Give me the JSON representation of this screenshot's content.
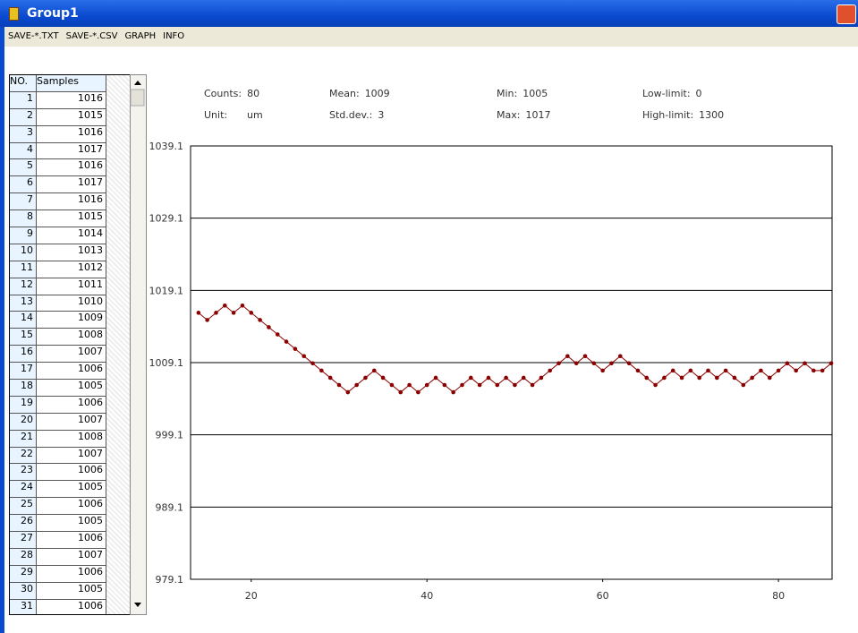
{
  "window": {
    "title": "Group1"
  },
  "menu": [
    "SAVE-*.TXT",
    "SAVE-*.CSV",
    "GRAPH",
    "INFO"
  ],
  "table": {
    "header": [
      "NO.",
      "Samples"
    ],
    "rows": [
      [
        1,
        1016
      ],
      [
        2,
        1015
      ],
      [
        3,
        1016
      ],
      [
        4,
        1017
      ],
      [
        5,
        1016
      ],
      [
        6,
        1017
      ],
      [
        7,
        1016
      ],
      [
        8,
        1015
      ],
      [
        9,
        1014
      ],
      [
        10,
        1013
      ],
      [
        11,
        1012
      ],
      [
        12,
        1011
      ],
      [
        13,
        1010
      ],
      [
        14,
        1009
      ],
      [
        15,
        1008
      ],
      [
        16,
        1007
      ],
      [
        17,
        1006
      ],
      [
        18,
        1005
      ],
      [
        19,
        1006
      ],
      [
        20,
        1007
      ],
      [
        21,
        1008
      ],
      [
        22,
        1007
      ],
      [
        23,
        1006
      ],
      [
        24,
        1005
      ],
      [
        25,
        1006
      ],
      [
        26,
        1005
      ],
      [
        27,
        1006
      ],
      [
        28,
        1007
      ],
      [
        29,
        1006
      ],
      [
        30,
        1005
      ],
      [
        31,
        1006
      ]
    ]
  },
  "stats": [
    {
      "label": "Counts:",
      "value": "80"
    },
    {
      "label": "Unit:",
      "value": "um"
    },
    {
      "label": "Mean:",
      "value": "1009"
    },
    {
      "label": "Std.dev.:",
      "value": "3"
    },
    {
      "label": "Min:",
      "value": "1005"
    },
    {
      "label": "Max:",
      "value": "1017"
    },
    {
      "label": "Low-limit:",
      "value": "0"
    },
    {
      "label": "High-limit:",
      "value": "1300"
    }
  ],
  "chart_data": {
    "type": "line",
    "color": "#8b0000",
    "grid": true,
    "x": [
      14,
      15,
      16,
      17,
      18,
      19,
      20,
      21,
      22,
      23,
      24,
      25,
      26,
      27,
      28,
      29,
      30,
      31,
      32,
      33,
      34,
      35,
      36,
      37,
      38,
      39,
      40,
      41,
      42,
      43,
      44,
      45,
      46,
      47,
      48,
      49,
      50,
      51,
      52,
      53,
      54,
      55,
      56,
      57,
      58,
      59,
      60,
      61,
      62,
      63,
      64,
      65,
      66,
      67,
      68,
      69,
      70,
      71,
      72,
      73,
      74,
      75,
      76,
      77,
      78,
      79,
      80,
      81,
      82,
      83,
      84,
      85,
      86
    ],
    "values": [
      1016,
      1015,
      1016,
      1017,
      1016,
      1017,
      1016,
      1015,
      1014,
      1013,
      1012,
      1011,
      1010,
      1009,
      1008,
      1007,
      1006,
      1005,
      1006,
      1007,
      1008,
      1007,
      1006,
      1005,
      1006,
      1005,
      1006,
      1007,
      1006,
      1005,
      1006,
      1007,
      1006,
      1007,
      1006,
      1007,
      1006,
      1007,
      1006,
      1007,
      1008,
      1009,
      1010,
      1009,
      1010,
      1009,
      1008,
      1009,
      1010,
      1009,
      1008,
      1007,
      1006,
      1007,
      1008,
      1007,
      1008,
      1007,
      1008,
      1007,
      1008,
      1007,
      1006,
      1007,
      1008,
      1007,
      1008,
      1009,
      1008,
      1009,
      1008,
      1008,
      1009
    ],
    "xlim": [
      13.1,
      86.1
    ],
    "xticks": [
      20,
      40,
      60,
      80
    ],
    "ylim": [
      979.1,
      1039.1
    ],
    "yticks": [
      979.1,
      989.1,
      999.1,
      1009.1,
      1019.1,
      1029.1,
      1039.1
    ]
  }
}
